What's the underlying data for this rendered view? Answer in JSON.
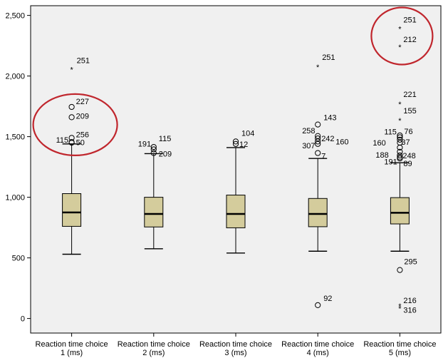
{
  "chart_data": {
    "type": "boxplot",
    "title": "",
    "xlabel": "",
    "ylabel": "",
    "ylim": [
      -120,
      2580
    ],
    "y_ticks": [
      0,
      500,
      1000,
      1500,
      2000,
      2500
    ],
    "y_tick_labels": [
      "0",
      "500",
      "1,000",
      "1,500",
      "2,000",
      "2,500"
    ],
    "grid": false,
    "plot_background": "#f0f0f0",
    "box_fill": "#d4cc9c",
    "highlight_color": "#c0262d",
    "categories": [
      {
        "label_line1": "Reaction time choice",
        "label_line2": "1 (ms)"
      },
      {
        "label_line1": "Reaction time choice",
        "label_line2": "2 (ms)"
      },
      {
        "label_line1": "Reaction time choice",
        "label_line2": "3 (ms)"
      },
      {
        "label_line1": "Reaction time choice",
        "label_line2": "4 (ms)"
      },
      {
        "label_line1": "Reaction time choice",
        "label_line2": "5 (ms)"
      }
    ],
    "boxes": [
      {
        "whisker_low": 530,
        "q1": 760,
        "median": 875,
        "q3": 1030,
        "whisker_high": 1440
      },
      {
        "whisker_low": 575,
        "q1": 755,
        "median": 862,
        "q3": 1000,
        "whisker_high": 1360
      },
      {
        "whisker_low": 540,
        "q1": 748,
        "median": 862,
        "q3": 1018,
        "whisker_high": 1410
      },
      {
        "whisker_low": 555,
        "q1": 757,
        "median": 862,
        "q3": 990,
        "whisker_high": 1320
      },
      {
        "whisker_low": 555,
        "q1": 780,
        "median": 872,
        "q3": 997,
        "whisker_high": 1285
      }
    ],
    "outliers": [
      {
        "box": 0,
        "value": 2065,
        "symbol": "star",
        "label": "251"
      },
      {
        "box": 0,
        "value": 1745,
        "symbol": "circle",
        "label": "227"
      },
      {
        "box": 0,
        "value": 1660,
        "symbol": "circle",
        "label": "209"
      },
      {
        "box": 0,
        "value": 1490,
        "symbol": "circle",
        "label": "256"
      },
      {
        "box": 0,
        "value": 1450,
        "symbol": "circle",
        "label": "115"
      },
      {
        "box": 0,
        "value": 1455,
        "symbol": "circle",
        "label": "50"
      },
      {
        "box": 1,
        "value": 1415,
        "symbol": "circle",
        "label": "115"
      },
      {
        "box": 1,
        "value": 1395,
        "symbol": "circle",
        "label": "191"
      },
      {
        "box": 1,
        "value": 1365,
        "symbol": "circle",
        "label": "209"
      },
      {
        "box": 2,
        "value": 1460,
        "symbol": "circle",
        "label": "104"
      },
      {
        "box": 2,
        "value": 1440,
        "symbol": "circle",
        "label": "12"
      },
      {
        "box": 3,
        "value": 2085,
        "symbol": "star",
        "label": "251"
      },
      {
        "box": 3,
        "value": 1600,
        "symbol": "circle",
        "label": "143"
      },
      {
        "box": 3,
        "value": 1505,
        "symbol": "circle",
        "label": "258"
      },
      {
        "box": 3,
        "value": 1485,
        "symbol": "circle",
        "label": "242"
      },
      {
        "box": 3,
        "value": 1460,
        "symbol": "circle",
        "label": "160"
      },
      {
        "box": 3,
        "value": 1440,
        "symbol": "circle",
        "label": "307"
      },
      {
        "box": 3,
        "value": 1365,
        "symbol": "circle",
        "label": "7"
      },
      {
        "box": 3,
        "value": 110,
        "symbol": "circle",
        "label": "92"
      },
      {
        "box": 4,
        "value": 2400,
        "symbol": "star",
        "label": "251"
      },
      {
        "box": 4,
        "value": 2250,
        "symbol": "star",
        "label": "212"
      },
      {
        "box": 4,
        "value": 1780,
        "symbol": "star",
        "label": "221"
      },
      {
        "box": 4,
        "value": 1645,
        "symbol": "star",
        "label": "155"
      },
      {
        "box": 4,
        "value": 1510,
        "symbol": "circle",
        "label": "76"
      },
      {
        "box": 4,
        "value": 1495,
        "symbol": "circle",
        "label": "115"
      },
      {
        "box": 4,
        "value": 1475,
        "symbol": "circle",
        "label": "160"
      },
      {
        "box": 4,
        "value": 1450,
        "symbol": "circle",
        "label": "37"
      },
      {
        "box": 4,
        "value": 1410,
        "symbol": "circle",
        "label": ""
      },
      {
        "box": 4,
        "value": 1375,
        "symbol": "circle",
        "label": "188"
      },
      {
        "box": 4,
        "value": 1345,
        "symbol": "circle",
        "label": "248"
      },
      {
        "box": 4,
        "value": 1330,
        "symbol": "circle",
        "label": "191"
      },
      {
        "box": 4,
        "value": 1320,
        "symbol": "circle",
        "label": "89"
      },
      {
        "box": 4,
        "value": 400,
        "symbol": "circle",
        "label": "295"
      },
      {
        "box": 4,
        "value": 115,
        "symbol": "star",
        "label": "216"
      },
      {
        "box": 4,
        "value": 95,
        "symbol": "star",
        "label": "316"
      }
    ],
    "highlight_ellipses": [
      {
        "box": 0,
        "value_center": 1610
      },
      {
        "box": 4,
        "value_center": 2330
      }
    ]
  }
}
